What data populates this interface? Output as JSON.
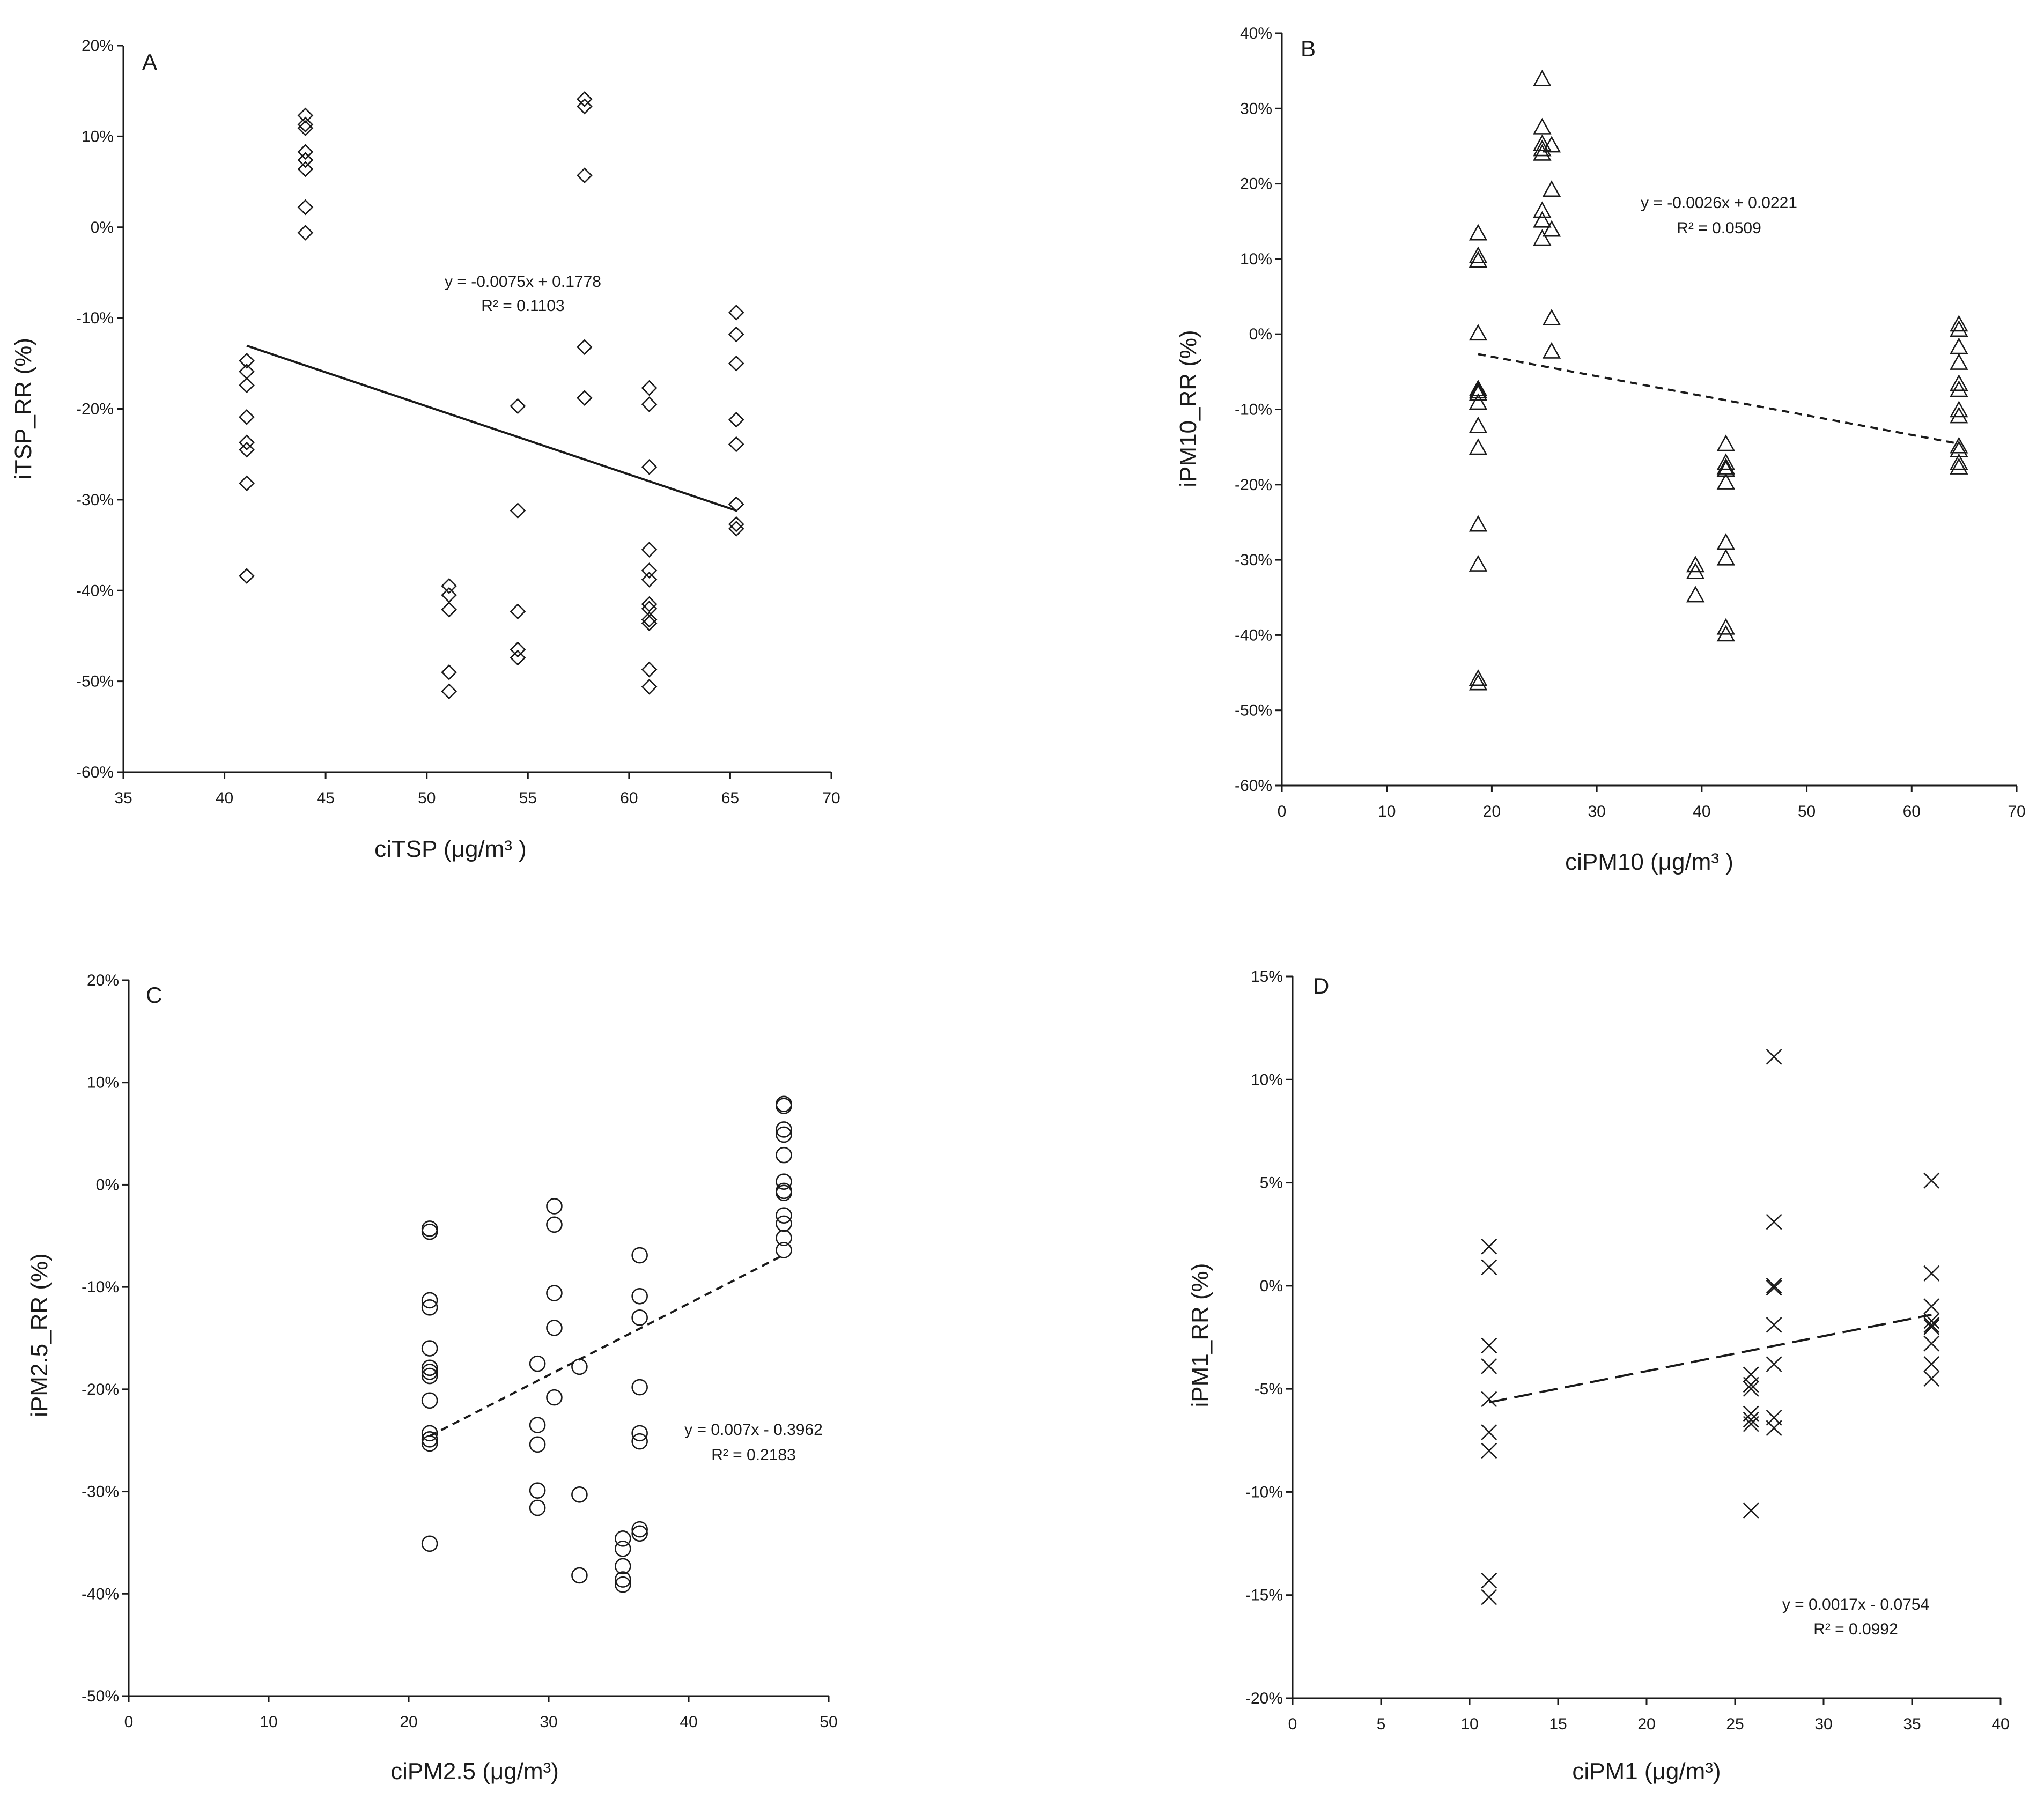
{
  "chart_data": [
    {
      "panel": "A",
      "type": "scatter",
      "marker": "diamond",
      "xlabel": "ciTSP (μg/m³ )",
      "ylabel": "iTSP_RR (%)",
      "xlim": [
        35,
        70
      ],
      "ylim": [
        -60,
        20
      ],
      "xticks": [
        35,
        40,
        45,
        50,
        55,
        60,
        65,
        70
      ],
      "yticks": [
        -60,
        -50,
        -40,
        -30,
        -20,
        -10,
        0,
        10,
        20
      ],
      "x": [
        41.1,
        41.1,
        41.1,
        41.1,
        41.1,
        41.1,
        41.1,
        41.1,
        44.0,
        44.0,
        44.0,
        44.0,
        44.0,
        44.0,
        44.0,
        44.0,
        51.1,
        51.1,
        51.1,
        51.1,
        51.1,
        54.5,
        54.5,
        54.5,
        54.5,
        54.5,
        57.8,
        57.8,
        57.8,
        57.8,
        57.8,
        61.0,
        61.0,
        61.0,
        61.0,
        61.0,
        61.0,
        61.0,
        61.0,
        61.0,
        61.0,
        61.0,
        61.0,
        65.3,
        65.3,
        65.3,
        65.3,
        65.3,
        65.3,
        65.3,
        65.3
      ],
      "y": [
        -14.7,
        -15.9,
        -17.4,
        -20.9,
        -23.7,
        -24.5,
        -28.2,
        -38.4,
        12.3,
        11.3,
        10.9,
        8.3,
        7.4,
        6.4,
        2.2,
        -0.6,
        -39.5,
        -40.5,
        -42.1,
        -49.0,
        -51.1,
        -19.7,
        -31.2,
        -42.3,
        -46.5,
        -47.4,
        14.1,
        13.3,
        5.7,
        -13.2,
        -18.8,
        -17.7,
        -19.5,
        -26.4,
        -35.5,
        -37.8,
        -38.8,
        -41.5,
        -42.0,
        -43.2,
        -43.6,
        -48.7,
        -50.6,
        -9.4,
        -11.8,
        -15.0,
        -21.2,
        -23.9,
        -30.5,
        -32.7,
        -33.2
      ],
      "trendline": {
        "slope": -0.0075,
        "intercept": 0.1778,
        "x_range": [
          41.1,
          65.3
        ],
        "style": "solid"
      },
      "equation": "y = -0.0075x + 0.1778",
      "r2": "R² = 0.1103"
    },
    {
      "panel": "B",
      "type": "scatter",
      "marker": "triangle",
      "xlabel": "ciPM10 (μg/m³ )",
      "ylabel": "iPM10_RR (%)",
      "xlim": [
        0,
        70
      ],
      "ylim": [
        -60,
        40
      ],
      "xticks": [
        0,
        10,
        20,
        30,
        40,
        50,
        60,
        70
      ],
      "yticks": [
        -60,
        -50,
        -40,
        -30,
        -20,
        -10,
        0,
        10,
        20,
        30,
        40
      ],
      "x": [
        18.7,
        18.7,
        18.7,
        18.7,
        18.7,
        18.7,
        18.7,
        18.7,
        18.7,
        18.7,
        18.7,
        18.7,
        18.7,
        18.7,
        24.8,
        24.8,
        24.8,
        24.8,
        24.8,
        24.8,
        24.8,
        24.8,
        25.7,
        25.7,
        25.7,
        25.7,
        25.7,
        39.4,
        39.4,
        39.4,
        42.3,
        42.3,
        42.3,
        42.3,
        42.3,
        42.3,
        42.3,
        42.3,
        42.3,
        64.5,
        64.5,
        64.5,
        64.5,
        64.5,
        64.5,
        64.5,
        64.5,
        64.5,
        64.5,
        64.5,
        64.5
      ],
      "y": [
        13.4,
        10.4,
        9.8,
        0.1,
        -7.3,
        -7.9,
        -9.1,
        -12.2,
        -15.1,
        -25.3,
        -30.6,
        -45.8,
        -46.4,
        -7.6,
        33.9,
        27.5,
        25.3,
        24.6,
        24.0,
        16.4,
        15.1,
        12.7,
        25.1,
        19.2,
        13.9,
        2.1,
        -2.3,
        -30.7,
        -31.6,
        -34.7,
        -14.6,
        -17.1,
        -17.7,
        -18.0,
        -19.7,
        -27.7,
        -29.8,
        -39.0,
        -39.9,
        1.3,
        0.6,
        -1.7,
        -3.8,
        -6.6,
        -7.4,
        -10.1,
        -10.9,
        -14.9,
        -15.4,
        -17.1,
        -17.7
      ],
      "trendline": {
        "slope": -0.0026,
        "intercept": 0.0221,
        "x_range": [
          18.7,
          64.5
        ],
        "style": "dashed"
      },
      "equation": "y = -0.0026x + 0.0221",
      "r2": "R² = 0.0509"
    },
    {
      "panel": "C",
      "type": "scatter",
      "marker": "circle",
      "xlabel": "ciPM2.5 (μg/m³)",
      "ylabel": "iPM2.5_RR (%)",
      "xlim": [
        0,
        50
      ],
      "ylim": [
        -50,
        20
      ],
      "xticks": [
        0,
        10,
        20,
        30,
        40,
        50
      ],
      "yticks": [
        -50,
        -40,
        -30,
        -20,
        -10,
        0,
        10,
        20
      ],
      "x": [
        21.5,
        21.5,
        21.5,
        21.5,
        21.5,
        21.5,
        21.5,
        21.5,
        21.5,
        21.5,
        21.5,
        21.5,
        21.5,
        29.2,
        29.2,
        29.2,
        29.2,
        29.2,
        30.4,
        30.4,
        30.4,
        30.4,
        30.4,
        32.2,
        32.2,
        32.2,
        35.3,
        35.3,
        35.3,
        35.3,
        35.3,
        36.5,
        36.5,
        36.5,
        36.5,
        36.5,
        36.5,
        36.5,
        36.5,
        46.8,
        46.8,
        46.8,
        46.8,
        46.8,
        46.8,
        46.8,
        46.8,
        46.8,
        46.8,
        46.8,
        46.8
      ],
      "y": [
        -4.3,
        -4.6,
        -11.3,
        -12.0,
        -16.0,
        -17.9,
        -18.3,
        -18.7,
        -21.1,
        -24.3,
        -24.9,
        -25.3,
        -35.1,
        -17.5,
        -23.5,
        -25.4,
        -29.9,
        -31.6,
        -2.1,
        -3.9,
        -10.6,
        -14.0,
        -20.8,
        -17.8,
        -30.3,
        -38.2,
        -34.6,
        -35.6,
        -37.3,
        -38.6,
        -39.1,
        -6.9,
        -10.9,
        -13.0,
        -19.8,
        -24.3,
        -25.1,
        -33.7,
        -34.1,
        7.9,
        7.7,
        5.4,
        4.9,
        2.9,
        0.3,
        -0.6,
        -0.8,
        -3.0,
        -3.8,
        -5.2,
        -6.4
      ],
      "trendline": {
        "slope": 0.007,
        "intercept": -0.3962,
        "x_range": [
          21.5,
          46.8
        ],
        "style": "dashed"
      },
      "equation": "y = 0.007x - 0.3962",
      "r2": "R² = 0.2183"
    },
    {
      "panel": "D",
      "type": "scatter",
      "marker": "x",
      "xlabel": "ciPM1 (μg/m³)",
      "ylabel": "iPM1_RR (%)",
      "xlim": [
        0,
        40
      ],
      "ylim": [
        -20,
        15
      ],
      "xticks": [
        0,
        5,
        10,
        15,
        20,
        25,
        30,
        35,
        40
      ],
      "yticks": [
        -20,
        -15,
        -10,
        -5,
        0,
        5,
        10,
        15
      ],
      "x": [
        11.1,
        11.1,
        11.1,
        11.1,
        11.1,
        11.1,
        11.1,
        11.1,
        11.1,
        25.9,
        25.9,
        25.9,
        25.9,
        25.9,
        25.9,
        25.9,
        27.2,
        27.2,
        27.2,
        27.2,
        27.2,
        27.2,
        27.2,
        27.2,
        36.1,
        36.1,
        36.1,
        36.1,
        36.1,
        36.1,
        36.1,
        36.1,
        36.1
      ],
      "y": [
        1.9,
        0.9,
        -2.9,
        -3.9,
        -5.5,
        -7.1,
        -8.0,
        -14.3,
        -15.1,
        -4.3,
        -4.8,
        -5.0,
        -6.2,
        -6.5,
        -6.7,
        -10.9,
        11.1,
        3.1,
        0.0,
        -0.1,
        -1.9,
        -3.8,
        -6.4,
        -6.9,
        5.1,
        0.6,
        -1.0,
        -1.7,
        -2.0,
        -2.8,
        -3.8,
        -4.5,
        -1.9
      ],
      "trendline": {
        "slope": 0.0017,
        "intercept": -0.0754,
        "x_range": [
          11.1,
          36.1
        ],
        "style": "longdash"
      },
      "equation": "y = 0.0017x - 0.0754",
      "r2": "R² = 0.0992"
    }
  ]
}
